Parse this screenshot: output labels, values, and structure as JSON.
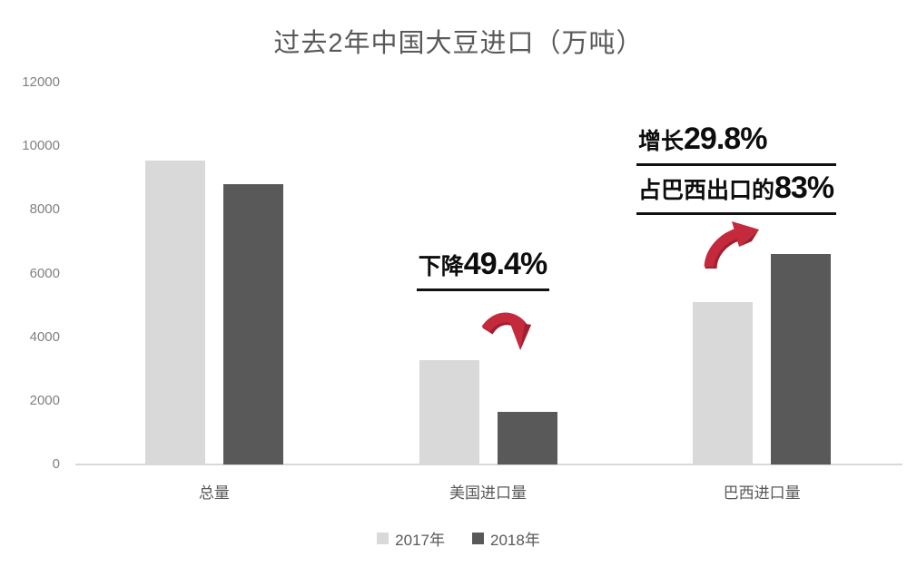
{
  "title": "过去2年中国大豆进口（万吨）",
  "chart_data": {
    "type": "bar",
    "title": "过去2年中国大豆进口（万吨）",
    "categories": [
      "总量",
      "美国进口量",
      "巴西进口量"
    ],
    "series": [
      {
        "name": "2017年",
        "color": "#d9d9d9",
        "values": [
          9554,
          3286,
          5093
        ]
      },
      {
        "name": "2018年",
        "color": "#595959",
        "values": [
          8803,
          1664,
          6610
        ]
      }
    ],
    "xlabel": "",
    "ylabel": "",
    "ylim": [
      0,
      12000
    ],
    "yticks": [
      0,
      2000,
      4000,
      6000,
      8000,
      10000,
      12000
    ],
    "grid": false,
    "legend_position": "bottom",
    "annotations": [
      "下降49.4%",
      "增长29.8%",
      "占巴西出口的83%"
    ]
  },
  "annotations": {
    "us_decline": {
      "prefix": "下降",
      "value": "49.4%"
    },
    "brazil_growth": {
      "prefix": "增长",
      "value": "29.8%"
    },
    "brazil_share": {
      "prefix": "占巴西出口的",
      "value": "83%"
    }
  },
  "colors": {
    "series_2017": "#d9d9d9",
    "series_2018": "#595959",
    "arrow_red": "#c5293c",
    "arrow_red_dark": "#9e1f30",
    "axis_line": "#d9d9d9",
    "title_text": "#595959",
    "annotation_text": "#0d0d0d"
  },
  "icons": {
    "decrease_arrow": "curved-red-arrow-down-right",
    "increase_arrow": "curved-red-arrow-up-right"
  }
}
